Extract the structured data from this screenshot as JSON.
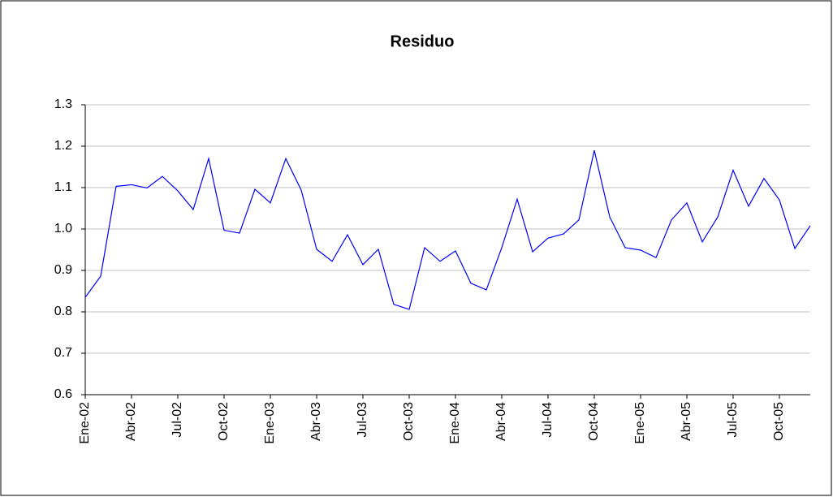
{
  "chart_data": {
    "type": "line",
    "title": "Residuo",
    "categories": [
      "Ene-02",
      null,
      null,
      "Abr-02",
      null,
      null,
      "Jul-02",
      null,
      null,
      "Oct-02",
      null,
      null,
      "Ene-03",
      null,
      null,
      "Abr-03",
      null,
      null,
      "Jul-03",
      null,
      null,
      "Oct-03",
      null,
      null,
      "Ene-04",
      null,
      null,
      "Abr-04",
      null,
      null,
      "Jul-04",
      null,
      null,
      "Oct-04",
      null,
      null,
      "Ene-05",
      null,
      null,
      "Abr-05",
      null,
      null,
      "Jul-05",
      null,
      null,
      "Oct-05",
      null,
      null
    ],
    "series": [
      {
        "name": "Residuo",
        "color": "#0000ff",
        "values": [
          0.835,
          0.886,
          1.103,
          1.107,
          1.099,
          1.127,
          1.092,
          1.047,
          1.17,
          0.997,
          0.99,
          1.096,
          1.063,
          1.17,
          1.094,
          0.951,
          0.922,
          0.986,
          0.914,
          0.951,
          0.818,
          0.806,
          0.955,
          0.922,
          0.947,
          0.869,
          0.853,
          0.955,
          1.072,
          0.945,
          0.978,
          0.988,
          1.022,
          1.19,
          1.029,
          0.955,
          0.949,
          0.931,
          1.022,
          1.063,
          0.969,
          1.029,
          1.142,
          1.055,
          1.122,
          1.07,
          0.953,
          1.008
        ]
      }
    ],
    "ylim": [
      0.6,
      1.3
    ],
    "yticks": [
      {
        "value": 0.6,
        "label": "0.6"
      },
      {
        "value": 0.7,
        "label": "0.7"
      },
      {
        "value": 0.8,
        "label": "0.8"
      },
      {
        "value": 0.9,
        "label": "0.9"
      },
      {
        "value": 1.0,
        "label": "1.0"
      },
      {
        "value": 1.1,
        "label": "1.1"
      },
      {
        "value": 1.2,
        "label": "1.2"
      },
      {
        "value": 1.3,
        "label": "1.3"
      }
    ],
    "grid": true
  }
}
